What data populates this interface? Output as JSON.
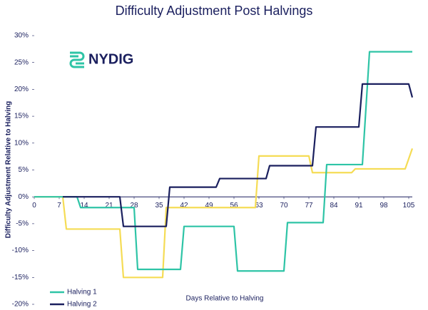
{
  "chart_data": {
    "type": "line",
    "title": "Difficulty Adjustment Post Halvings",
    "logo": "NYDIG",
    "x_label": "Days Relative to Halving",
    "y_label": "Difficulty Adjustment Relative to Halving",
    "xlim": [
      0,
      106
    ],
    "ylim": [
      -20,
      30
    ],
    "xticks": [
      0,
      7,
      14,
      21,
      28,
      35,
      42,
      49,
      56,
      63,
      70,
      77,
      84,
      91,
      98,
      105
    ],
    "yticks": [
      {
        "value": -20,
        "label": "-20%"
      },
      {
        "value": -15,
        "label": "-15%"
      },
      {
        "value": -10,
        "label": "-10%"
      },
      {
        "value": -5,
        "label": "-5%"
      },
      {
        "value": 0,
        "label": "0%"
      },
      {
        "value": 5,
        "label": "5%"
      },
      {
        "value": 10,
        "label": "10%"
      },
      {
        "value": 15,
        "label": "15%"
      },
      {
        "value": 20,
        "label": "20%"
      },
      {
        "value": 25,
        "label": "25%"
      },
      {
        "value": 30,
        "label": "30%"
      }
    ],
    "grid": false,
    "legend": "lower left",
    "series": [
      {
        "color": "#f5dc55",
        "x": [
          0,
          8,
          9,
          24,
          25,
          36,
          37,
          62,
          63,
          77,
          78,
          89,
          90,
          104,
          106
        ],
        "values": [
          0,
          0,
          -6,
          -6,
          -15,
          -15,
          -2,
          -2,
          7.6,
          7.6,
          4.5,
          4.5,
          5.2,
          5.2,
          9
        ]
      },
      {
        "name": "Halving 1",
        "color": "#2ec4a6",
        "x": [
          0,
          12,
          13,
          28,
          29,
          41,
          42,
          56,
          57,
          70,
          71,
          81,
          82,
          92,
          94,
          106
        ],
        "values": [
          0,
          0,
          -2,
          -2,
          -13.5,
          -13.5,
          -5.5,
          -5.5,
          -13.8,
          -13.8,
          -4.8,
          -4.8,
          6,
          6,
          27,
          27
        ]
      },
      {
        "name": "Halving 2",
        "color": "#1a1f5e",
        "x": [
          8,
          24,
          25,
          37,
          38,
          51,
          52,
          65,
          66,
          78,
          79,
          91,
          92,
          105,
          106
        ],
        "values": [
          0,
          0,
          -5.5,
          -5.5,
          1.8,
          1.8,
          3.4,
          3.4,
          5.8,
          5.8,
          13,
          13,
          21,
          21,
          18.5
        ]
      }
    ]
  }
}
